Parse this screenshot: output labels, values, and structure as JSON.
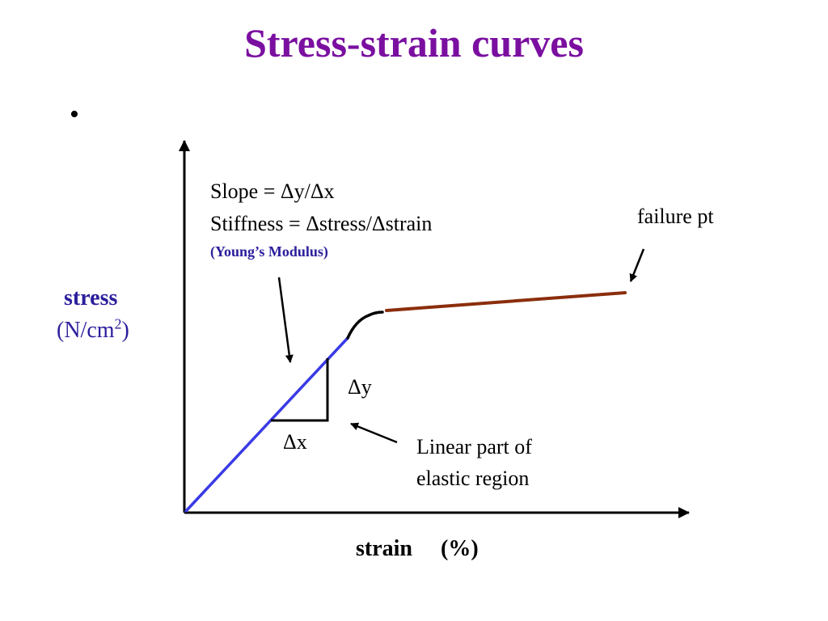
{
  "slide": {
    "title": "Stress-strain curves",
    "bullet": "•"
  },
  "colors": {
    "title": "#7a0fa0",
    "axis_label": "#2b1e9c",
    "youngs_modulus": "#2b1e9c",
    "elastic_line": "#3a3ae6",
    "plastic_line": "#8b2e0c",
    "transition_curve": "#000000",
    "axes": "#000000"
  },
  "annotations": {
    "slope": "Slope = Δy/Δx",
    "stiffness": "Stiffness = Δstress/Δstrain",
    "youngs_modulus": "(Young’s Modulus)",
    "failure": "failure pt",
    "delta_y": "Δy",
    "delta_x": "Δx",
    "linear_line1": "Linear part of",
    "linear_line2": "elastic region"
  },
  "axes": {
    "y_label": "stress",
    "y_unit_prefix": "(N/cm",
    "y_unit_power": "2",
    "y_unit_suffix": ")",
    "x_label": "strain",
    "x_unit": "(%)"
  }
}
